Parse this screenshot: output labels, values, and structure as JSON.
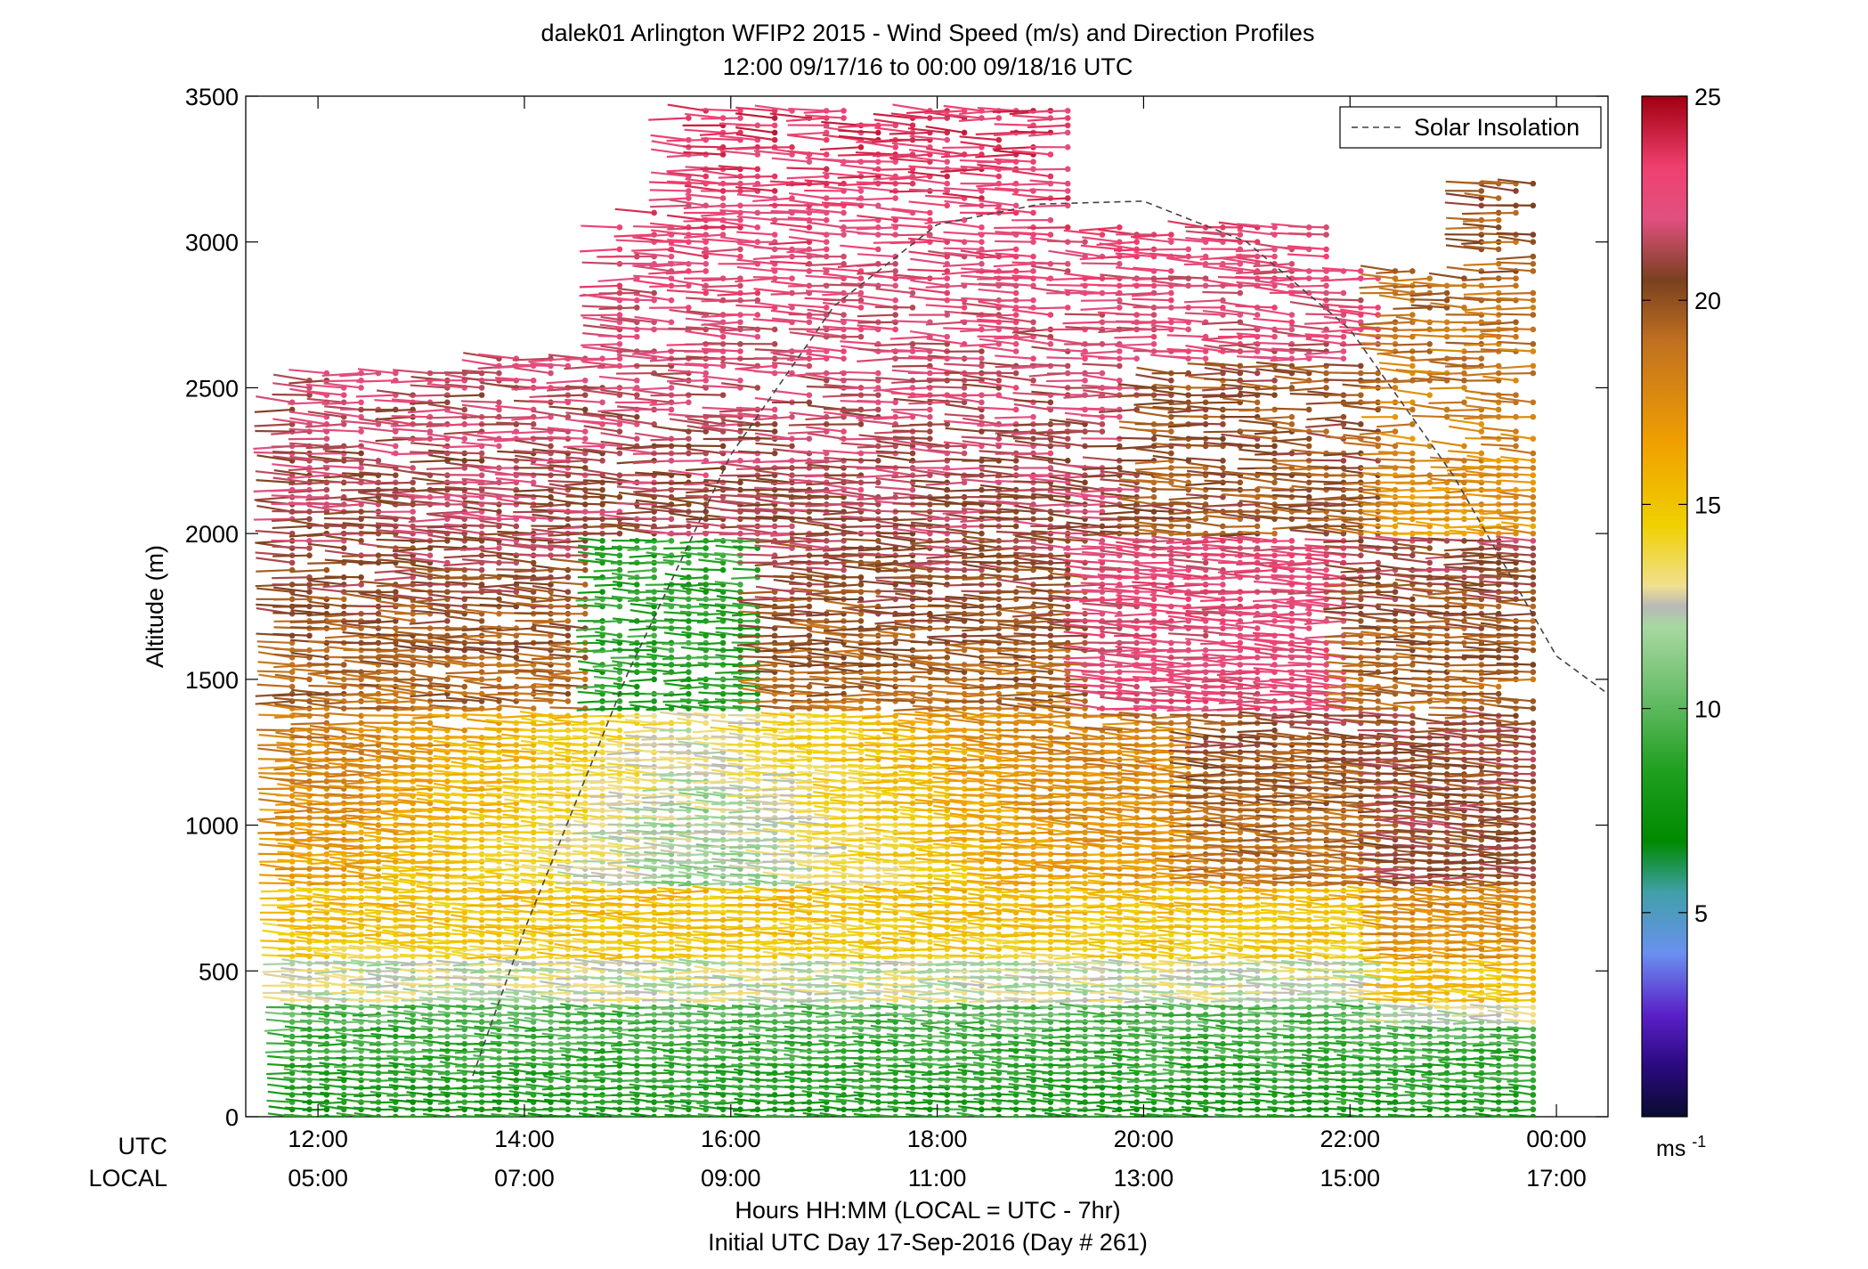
{
  "chart_data": {
    "type": "scatter",
    "title": "dalek01 Arlington WFIP2 2015 - Wind Speed (m/s) and Direction Profiles",
    "subtitle": "12:00 09/17/16 to 00:00 09/18/16  UTC",
    "ylabel": "Altitude (m)",
    "xlabel": "Hours HH:MM  (LOCAL = UTC - 7hr)",
    "xlabel2": "Initial UTC Day 17-Sep-2016 (Day # 261)",
    "row_labels": [
      "UTC",
      "LOCAL"
    ],
    "x_ticks_utc": [
      "12:00",
      "14:00",
      "16:00",
      "18:00",
      "20:00",
      "22:00",
      "00:00"
    ],
    "x_ticks_local": [
      "05:00",
      "07:00",
      "09:00",
      "11:00",
      "13:00",
      "15:00",
      "17:00"
    ],
    "x_tick_hours": [
      12,
      14,
      16,
      18,
      20,
      22,
      24
    ],
    "xlim_hours": [
      11.3,
      24.5
    ],
    "y_ticks": [
      "0",
      "500",
      "1000",
      "1500",
      "2000",
      "2500",
      "3000",
      "3500"
    ],
    "y_tick_values": [
      0,
      500,
      1000,
      1500,
      2000,
      2500,
      3000,
      3500
    ],
    "ylim": [
      0,
      3500
    ],
    "legend": {
      "label": "Solar Insolation",
      "position": "top-right"
    },
    "solar_insolation": {
      "hours": [
        13.5,
        14,
        15,
        16,
        17,
        18,
        19,
        20,
        21,
        22,
        23,
        24,
        24.5
      ],
      "altitude_equiv_m": [
        140,
        640,
        1520,
        2270,
        2780,
        3060,
        3130,
        3140,
        3000,
        2700,
        2200,
        1580,
        1450
      ]
    },
    "colorbar": {
      "label": "ms-1",
      "ticks": [
        "5",
        "10",
        "15",
        "20",
        "25"
      ],
      "tick_values": [
        5,
        10,
        15,
        20,
        25
      ],
      "range": [
        0,
        25
      ]
    },
    "wind_profiles": {
      "time_hours_start": 11.75,
      "time_hours_end": 23.83,
      "time_step_hours": 0.167,
      "altitude_start_m": 0,
      "altitude_step_m": 25,
      "altitude_max_m": 3475,
      "description": "Wind barbs colored by speed; low levels green (~7-10 m/s), 400-800 m yellow (~13-16 m/s), upper levels brown/red (~18-25 m/s)"
    }
  }
}
